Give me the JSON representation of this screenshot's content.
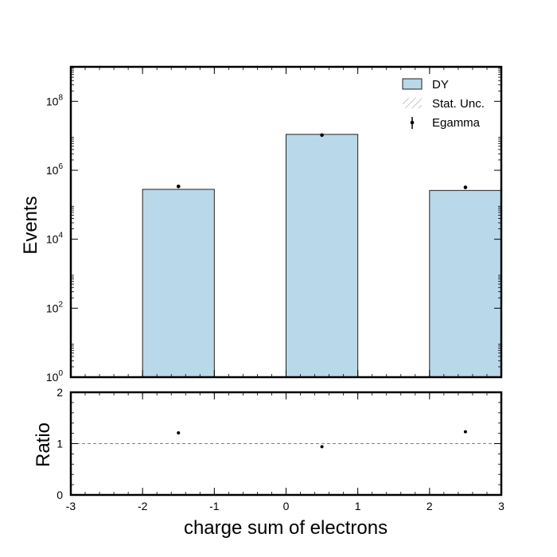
{
  "colors": {
    "bar_fill": "#b9d8ea",
    "bar_edge": "#222222",
    "data_marker": "#000000",
    "unc_hatch": "#888888",
    "ratio_line": "#808080"
  },
  "chart_data": [
    {
      "type": "bar",
      "panel": "main",
      "xlabel": "",
      "ylabel": "Events",
      "yscale": "log",
      "xlim": [
        -3,
        3
      ],
      "ylim": [
        1,
        1000000000
      ],
      "y_tick_exponents": [
        0,
        2,
        4,
        6,
        8
      ],
      "y_tick_labels": [
        "10",
        "10",
        "10",
        "10",
        "10"
      ],
      "y_tick_sups": [
        "0",
        "2",
        "4",
        "6",
        "8"
      ],
      "series": [
        {
          "name": "DY",
          "kind": "histogram",
          "bins": [
            {
              "low": -2,
              "high": -1,
              "value": 280000
            },
            {
              "low": 0,
              "high": 1,
              "value": 11000000
            },
            {
              "low": 2,
              "high": 3,
              "value": 260000
            }
          ]
        },
        {
          "name": "Stat. Unc.",
          "kind": "hatched-band"
        },
        {
          "name": "Egamma",
          "kind": "points",
          "x": [
            -1.5,
            0.5,
            2.5
          ],
          "y": [
            340000,
            10500000,
            320000
          ]
        }
      ],
      "legend": {
        "placement": "top-right",
        "entries": [
          "DY",
          "Stat. Unc.",
          "Egamma"
        ]
      },
      "grid": false
    },
    {
      "type": "scatter",
      "panel": "ratio",
      "xlabel": "charge sum of electrons",
      "ylabel": "Ratio",
      "xlim": [
        -3,
        3
      ],
      "ylim": [
        0,
        2
      ],
      "x_ticks": [
        -3,
        -2,
        -1,
        0,
        1,
        2,
        3
      ],
      "x_tick_labels": [
        "-3",
        "-2",
        "-1",
        "0",
        "1",
        "2",
        "3"
      ],
      "y_ticks": [
        0,
        1,
        2
      ],
      "y_tick_labels": [
        "0",
        "1",
        "2"
      ],
      "reference_line": 1,
      "series": [
        {
          "x": [
            -1.5,
            0.5,
            2.5
          ],
          "y": [
            1.21,
            0.94,
            1.23
          ]
        }
      ],
      "grid": false
    }
  ]
}
